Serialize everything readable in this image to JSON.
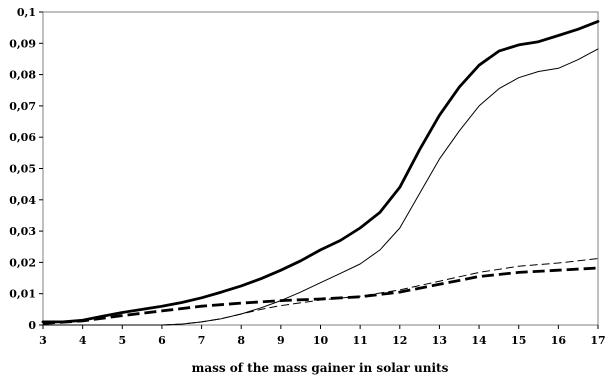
{
  "chart_data": {
    "type": "line",
    "title": "",
    "xlabel": "mass of the mass gainer in solar units",
    "ylabel": "",
    "xlim": [
      3,
      17
    ],
    "ylim": [
      0,
      0.1
    ],
    "grid": false,
    "legend": "none",
    "x_ticks": [
      3,
      4,
      5,
      6,
      7,
      8,
      9,
      10,
      11,
      12,
      13,
      14,
      15,
      16,
      17
    ],
    "x_tick_labels": [
      "3",
      "4",
      "5",
      "6",
      "7",
      "8",
      "9",
      "10",
      "11",
      "12",
      "13",
      "14",
      "15",
      "16",
      "17"
    ],
    "y_ticks": [
      0,
      0.01,
      0.02,
      0.03,
      0.04,
      0.05,
      0.06,
      0.07,
      0.08,
      0.09,
      0.1
    ],
    "y_tick_labels": [
      "0",
      "0,01",
      "0,02",
      "0,03",
      "0,04",
      "0,05",
      "0,06",
      "0,07",
      "0,08",
      "0,09",
      "0,1"
    ],
    "series": [
      {
        "style": "solid",
        "weight": "thick",
        "color": "#000000",
        "x": [
          3,
          3.5,
          4,
          4.5,
          5,
          5.5,
          6,
          6.5,
          7,
          7.5,
          8,
          8.5,
          9,
          9.5,
          10,
          10.5,
          11,
          11.5,
          12,
          12.5,
          13,
          13.5,
          14,
          14.5,
          15,
          15.5,
          16,
          16.5,
          17
        ],
        "y": [
          0.001,
          0.001,
          0.0015,
          0.0028,
          0.004,
          0.005,
          0.006,
          0.0072,
          0.0087,
          0.0105,
          0.0125,
          0.0148,
          0.0175,
          0.0205,
          0.024,
          0.027,
          0.031,
          0.036,
          0.044,
          0.056,
          0.067,
          0.076,
          0.083,
          0.0875,
          0.0895,
          0.0905,
          0.0925,
          0.0945,
          0.097
        ]
      },
      {
        "style": "solid",
        "weight": "thin",
        "color": "#000000",
        "x": [
          3,
          4,
          5,
          6,
          6.5,
          7,
          7.5,
          8,
          8.5,
          9,
          9.5,
          10,
          10.5,
          11,
          11.5,
          12,
          12.5,
          13,
          13.5,
          14,
          14.5,
          15,
          15.5,
          16,
          16.5,
          17
        ],
        "y": [
          0,
          0,
          0,
          0,
          0.0003,
          0.001,
          0.002,
          0.0035,
          0.0055,
          0.0078,
          0.0105,
          0.0135,
          0.0165,
          0.0195,
          0.024,
          0.031,
          0.042,
          0.053,
          0.062,
          0.07,
          0.0755,
          0.079,
          0.081,
          0.082,
          0.0848,
          0.0882
        ]
      },
      {
        "style": "dashed",
        "weight": "thick",
        "color": "#000000",
        "x": [
          3,
          4,
          5,
          6,
          7,
          8,
          9,
          10,
          11,
          12,
          13,
          14,
          15,
          16,
          17
        ],
        "y": [
          0.0005,
          0.0013,
          0.003,
          0.0045,
          0.006,
          0.007,
          0.0078,
          0.0083,
          0.009,
          0.0105,
          0.013,
          0.0155,
          0.0168,
          0.0175,
          0.0182
        ]
      },
      {
        "style": "dashed",
        "weight": "thin",
        "color": "#000000",
        "x": [
          3,
          4,
          5,
          6,
          6.5,
          7,
          7.5,
          8,
          8.5,
          9,
          10,
          11,
          12,
          13,
          14,
          15,
          16,
          17
        ],
        "y": [
          0,
          0,
          0,
          0,
          0.0003,
          0.001,
          0.002,
          0.0035,
          0.005,
          0.0062,
          0.008,
          0.0092,
          0.0112,
          0.014,
          0.0168,
          0.0188,
          0.0198,
          0.0212
        ]
      }
    ]
  }
}
